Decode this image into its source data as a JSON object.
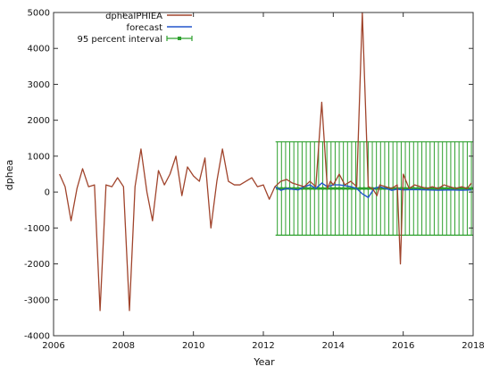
{
  "chart_data": {
    "type": "line",
    "title": "",
    "xlabel": "Year",
    "ylabel": "dphea",
    "xlim": [
      2006,
      2018
    ],
    "ylim": [
      -4000,
      5000
    ],
    "x_ticks": [
      2006,
      2008,
      2010,
      2012,
      2014,
      2016,
      2018
    ],
    "y_ticks": [
      -4000,
      -3000,
      -2000,
      -1000,
      0,
      1000,
      2000,
      3000,
      4000,
      5000
    ],
    "grid": false,
    "legend_position": "top-left",
    "series": [
      {
        "name": "dpheaIPHIEA",
        "color": "#a0442c",
        "x": [
          2006.17,
          2006.33,
          2006.5,
          2006.67,
          2006.83,
          2007.0,
          2007.17,
          2007.33,
          2007.5,
          2007.67,
          2007.83,
          2008.0,
          2008.17,
          2008.33,
          2008.5,
          2008.67,
          2008.83,
          2009.0,
          2009.17,
          2009.33,
          2009.5,
          2009.67,
          2009.83,
          2010.0,
          2010.17,
          2010.33,
          2010.5,
          2010.67,
          2010.83,
          2011.0,
          2011.17,
          2011.33,
          2011.5,
          2011.67,
          2011.83,
          2012.0,
          2012.17,
          2012.33,
          2012.5,
          2012.67,
          2012.83,
          2013.0,
          2013.17,
          2013.33,
          2013.5,
          2013.67,
          2013.83,
          2013.92,
          2014.0,
          2014.17,
          2014.33,
          2014.5,
          2014.67,
          2014.83,
          2015.0,
          2015.12,
          2015.25,
          2015.33,
          2015.5,
          2015.67,
          2015.83,
          2015.92,
          2016.0,
          2016.17,
          2016.33,
          2016.5,
          2016.67,
          2016.83,
          2017.0,
          2017.17,
          2017.33,
          2017.5,
          2017.67,
          2017.83,
          2017.95
        ],
        "y": [
          500,
          150,
          -800,
          100,
          650,
          150,
          200,
          -3300,
          200,
          150,
          400,
          150,
          -3300,
          150,
          1200,
          0,
          -800,
          600,
          200,
          500,
          1000,
          -100,
          700,
          450,
          300,
          950,
          -1000,
          300,
          1200,
          300,
          200,
          200,
          300,
          400,
          150,
          200,
          -200,
          150,
          300,
          350,
          250,
          200,
          150,
          300,
          150,
          2500,
          100,
          300,
          200,
          500,
          200,
          300,
          150,
          5000,
          150,
          100,
          -100,
          200,
          150,
          100,
          200,
          -2000,
          500,
          100,
          200,
          150,
          100,
          150,
          100,
          200,
          150,
          100,
          150,
          100,
          250
        ]
      },
      {
        "name": "forecast",
        "color": "#2255cc",
        "x": [
          2012.33,
          2012.5,
          2012.67,
          2012.83,
          2013.0,
          2013.17,
          2013.33,
          2013.5,
          2013.67,
          2013.83,
          2014.0,
          2014.17,
          2014.33,
          2014.5,
          2014.67,
          2014.83,
          2015.0,
          2015.17,
          2015.33,
          2015.5,
          2015.67,
          2015.83,
          2016.0,
          2016.33,
          2016.67,
          2017.0,
          2017.33,
          2017.67,
          2017.95
        ],
        "y": [
          150,
          50,
          100,
          80,
          60,
          150,
          200,
          100,
          250,
          150,
          200,
          200,
          180,
          150,
          100,
          -50,
          -150,
          100,
          150,
          100,
          50,
          80,
          60,
          70,
          60,
          50,
          60,
          50,
          60
        ]
      },
      {
        "name": "95 percent interval",
        "color": "#2ea02e",
        "x_start": 2012.4,
        "x_end": 2017.95,
        "upper": 1400,
        "lower": -1200,
        "center": 100
      }
    ]
  }
}
